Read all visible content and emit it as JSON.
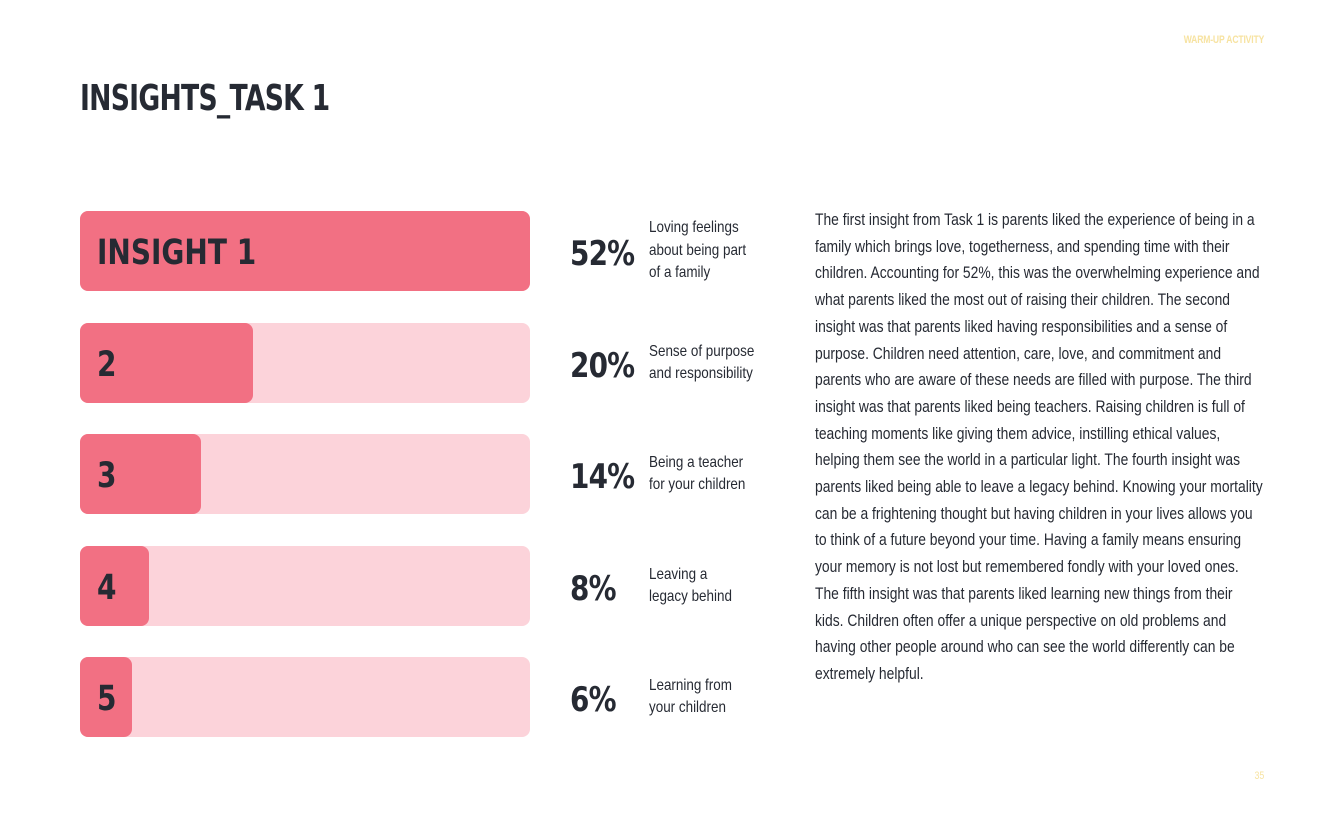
{
  "header": {
    "tag": "WARM-UP ACTIVITY",
    "title": "INSIGHTS_TASK 1"
  },
  "colors": {
    "accent": "#f27083",
    "track": "#fcd3da",
    "text": "#262a33",
    "muted": "#f7e3a1"
  },
  "chart_data": {
    "type": "bar",
    "orientation": "horizontal",
    "categories": [
      "INSIGHT 1",
      "2",
      "3",
      "4",
      "5"
    ],
    "values": [
      52,
      20,
      14,
      8,
      6
    ],
    "value_labels": [
      "52%",
      "20%",
      "14%",
      "8%",
      "6%"
    ],
    "descriptions": [
      "Loving feelings\nabout being part\nof a family",
      "Sense of purpose\nand responsibility",
      "Being a teacher\nfor your children",
      "Leaving a\nlegacy behind",
      "Learning from\nyour children"
    ],
    "xlim": [
      0,
      52
    ]
  },
  "body": {
    "text": "The first insight from Task 1 is parents liked the experience of being in a family which brings love, togetherness, and spending time with their children. Accounting for 52%, this was the overwhelming experience and what parents liked the most out of raising their children. The second insight was that parents liked having responsibilities and a sense of purpose. Children need attention, care, love, and commitment and parents who are aware of these needs are filled with purpose. The third insight was that parents liked being teachers. Raising children is full of teaching moments like giving them advice, instilling ethical values, helping them see the world in a particular light. The fourth insight was parents liked being able to leave a legacy behind. Knowing your mortality can be a frightening thought but having children in your lives allows you to think of a future beyond your time. Having a family means ensuring your memory is not lost but remembered fondly with your loved ones. The fifth insight was that parents liked learning new things from their kids. Children often offer a unique perspective on old problems and having other people around who can see the world differently can be extremely helpful."
  },
  "footer": {
    "page_number": "35"
  }
}
